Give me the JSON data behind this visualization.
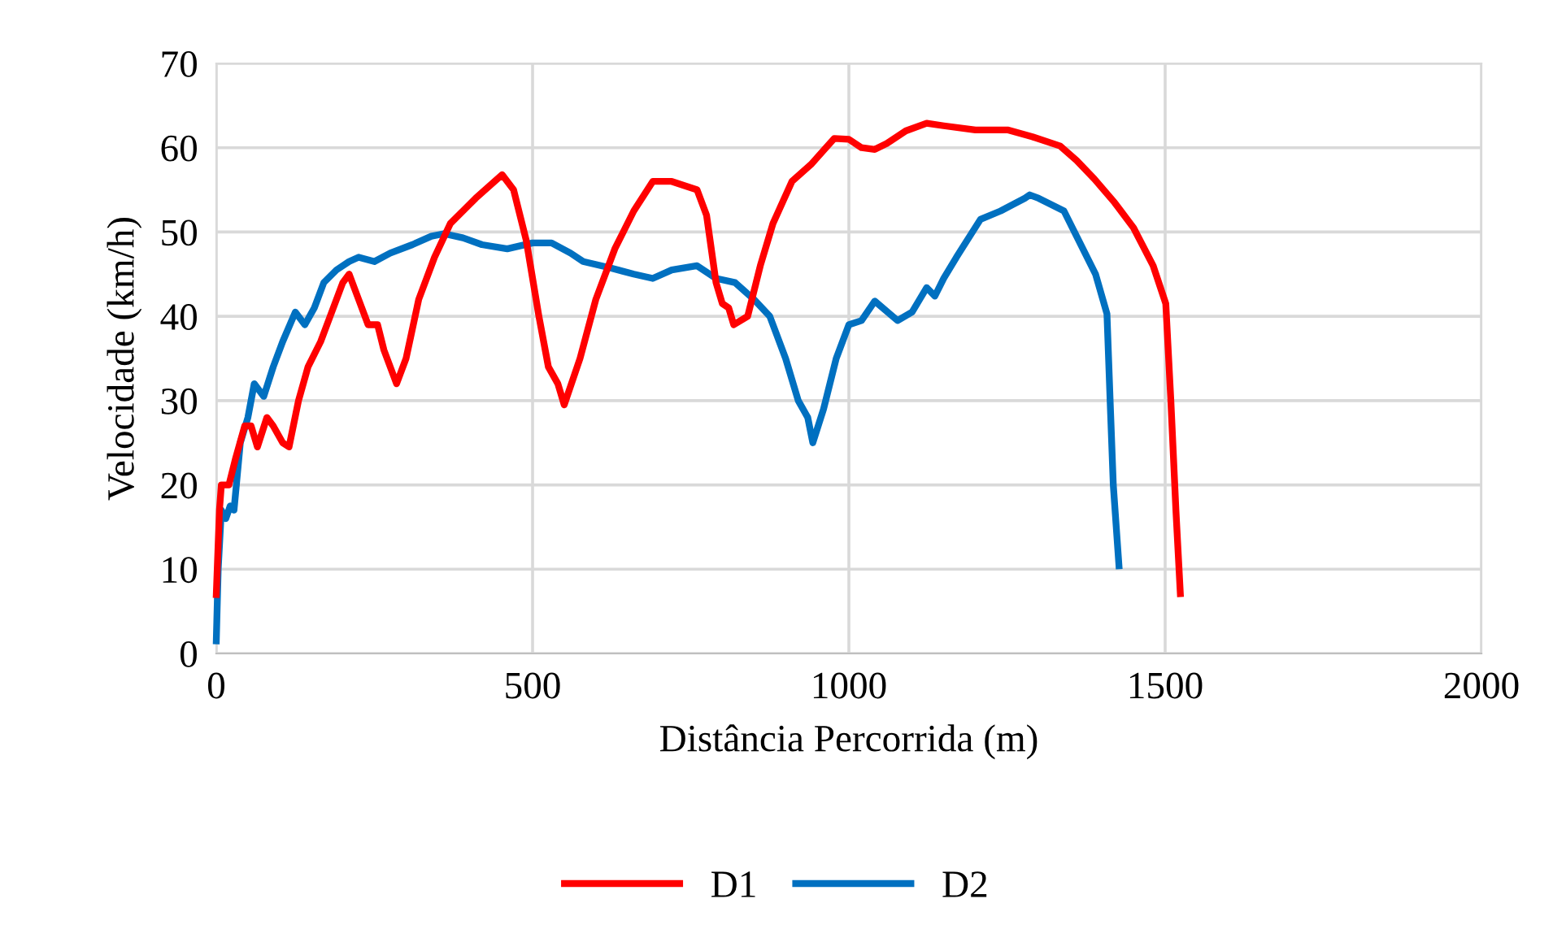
{
  "chart_data": {
    "type": "line",
    "xlabel": "Distância Percorrida (m)",
    "ylabel": "Velocidade (km/h)",
    "xlim": [
      0,
      2000
    ],
    "xticks": [
      0,
      500,
      1000,
      1500,
      2000
    ],
    "ylim": [
      0,
      70
    ],
    "yticks": [
      0,
      10,
      20,
      30,
      40,
      50,
      60,
      70
    ],
    "grid": true,
    "legend": "bottom",
    "line_style": "solid",
    "marker": "none",
    "series": [
      {
        "name": "D1",
        "color": "#ff0000",
        "x": [
          0,
          5,
          8,
          20,
          30,
          45,
          55,
          65,
          80,
          90,
          105,
          115,
          130,
          145,
          165,
          180,
          200,
          210,
          225,
          240,
          255,
          265,
          285,
          300,
          320,
          345,
          370,
          410,
          440,
          452,
          470,
          490,
          510,
          525,
          540,
          550,
          575,
          600,
          630,
          660,
          690,
          720,
          760,
          775,
          790,
          800,
          810,
          818,
          840,
          860,
          880,
          910,
          940,
          977,
          1000,
          1020,
          1041,
          1060,
          1090,
          1123,
          1150,
          1200,
          1252,
          1290,
          1334,
          1360,
          1388,
          1420,
          1450,
          1481,
          1501,
          1509,
          1517,
          1524
        ],
        "values": [
          7,
          17,
          20,
          20,
          23,
          27,
          27,
          24.5,
          28,
          27,
          25,
          24.5,
          30,
          34,
          37,
          40,
          44,
          45,
          42,
          39,
          39,
          36,
          32,
          35,
          42,
          47,
          51,
          54,
          56,
          56.8,
          55,
          49,
          40,
          34,
          32,
          29.5,
          35,
          42,
          48,
          52.5,
          56,
          56,
          55,
          52,
          44,
          41.5,
          41,
          39,
          40,
          46,
          51,
          56,
          58,
          61.1,
          61,
          60,
          59.8,
          60.5,
          62,
          62.9,
          62.6,
          62.1,
          62.1,
          61.3,
          60.2,
          58.5,
          56.3,
          53.5,
          50.5,
          46,
          41.5,
          30,
          17,
          7.1
        ]
      },
      {
        "name": "D2",
        "color": "#0070c0",
        "x": [
          0,
          3,
          8,
          15,
          22,
          28,
          38,
          50,
          60,
          75,
          90,
          105,
          125,
          140,
          155,
          170,
          190,
          210,
          225,
          250,
          275,
          310,
          340,
          360,
          390,
          420,
          460,
          500,
          530,
          560,
          580,
          620,
          660,
          690,
          720,
          760,
          790,
          820,
          850,
          875,
          900,
          920,
          935,
          943,
          960,
          980,
          1000,
          1020,
          1041,
          1077,
          1100,
          1123,
          1136,
          1150,
          1170,
          1208,
          1240,
          1278,
          1286,
          1300,
          1340,
          1360,
          1390,
          1408,
          1413,
          1418,
          1427
        ],
        "values": [
          1.5,
          10,
          17,
          16,
          17.5,
          17,
          25,
          28,
          32,
          30.5,
          34,
          37,
          40.5,
          39,
          41,
          44,
          45.5,
          46.5,
          47,
          46.5,
          47.5,
          48.5,
          49.5,
          49.8,
          49.3,
          48.5,
          48,
          48.7,
          48.7,
          47.5,
          46.5,
          45.8,
          45,
          44.5,
          45.5,
          46,
          44.5,
          44,
          42,
          40,
          35,
          30,
          28,
          25,
          29,
          35,
          39,
          39.5,
          41.8,
          39.5,
          40.5,
          43.4,
          42.4,
          44.5,
          47,
          51.5,
          52.5,
          54,
          54.4,
          54,
          52.5,
          49.5,
          45,
          40.3,
          30,
          20,
          10.4
        ]
      }
    ]
  }
}
